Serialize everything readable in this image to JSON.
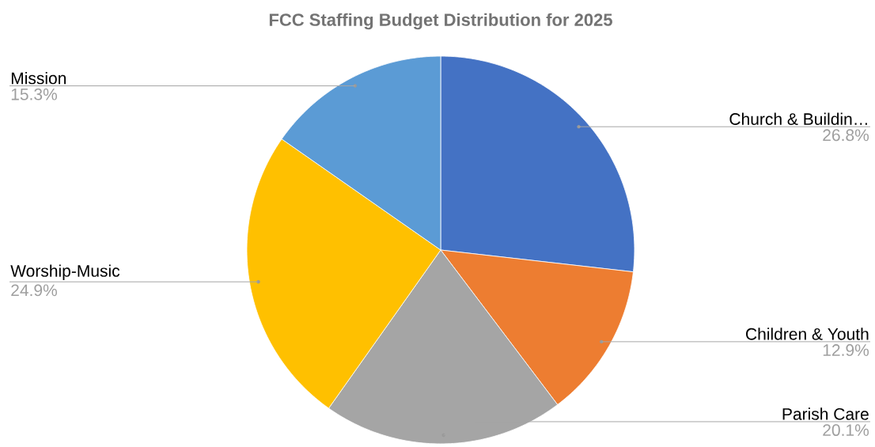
{
  "chart_data": {
    "type": "pie",
    "title": "FCC Staffing Budget Distribution for 2025",
    "categories": [
      "Church & Buildin…",
      "Children & Youth",
      "Parish Care",
      "Worship-Music",
      "Mission"
    ],
    "values": [
      26.8,
      12.9,
      20.1,
      24.9,
      15.3
    ],
    "colors": [
      "#4472c4",
      "#ed7d31",
      "#a5a5a5",
      "#ffc000",
      "#5b9bd5"
    ],
    "value_labels": [
      "26.8%",
      "12.9%",
      "20.1%",
      "24.9%",
      "15.3%"
    ]
  }
}
